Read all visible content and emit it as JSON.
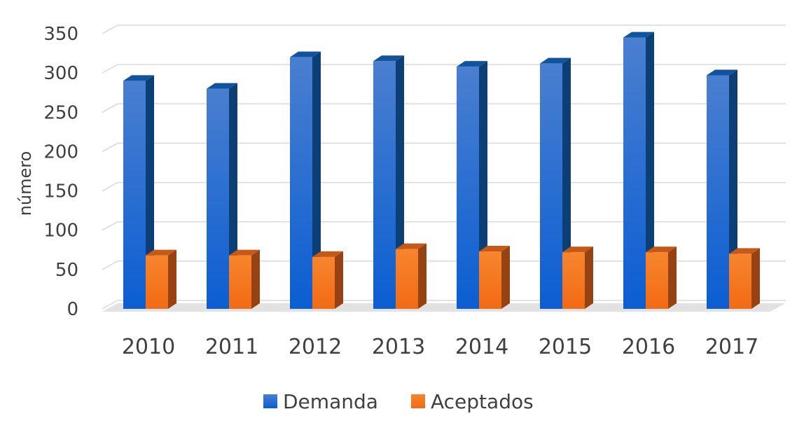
{
  "chart_data": {
    "type": "bar",
    "style": "3d-clustered-column",
    "title": "",
    "xlabel": "",
    "ylabel": "número",
    "ylim": [
      0,
      350
    ],
    "yticks": [
      0,
      50,
      100,
      150,
      200,
      250,
      300,
      350
    ],
    "grid": true,
    "legend_position": "bottom",
    "categories": [
      "2010",
      "2011",
      "2012",
      "2013",
      "2014",
      "2015",
      "2016",
      "2017"
    ],
    "series": [
      {
        "name": "Demanda",
        "color": "#1565C0",
        "values": [
          290,
          280,
          320,
          315,
          308,
          312,
          345,
          297
        ]
      },
      {
        "name": "Aceptados",
        "color": "#F26B1D",
        "values": [
          68,
          68,
          66,
          76,
          73,
          72,
          72,
          70
        ]
      }
    ]
  }
}
